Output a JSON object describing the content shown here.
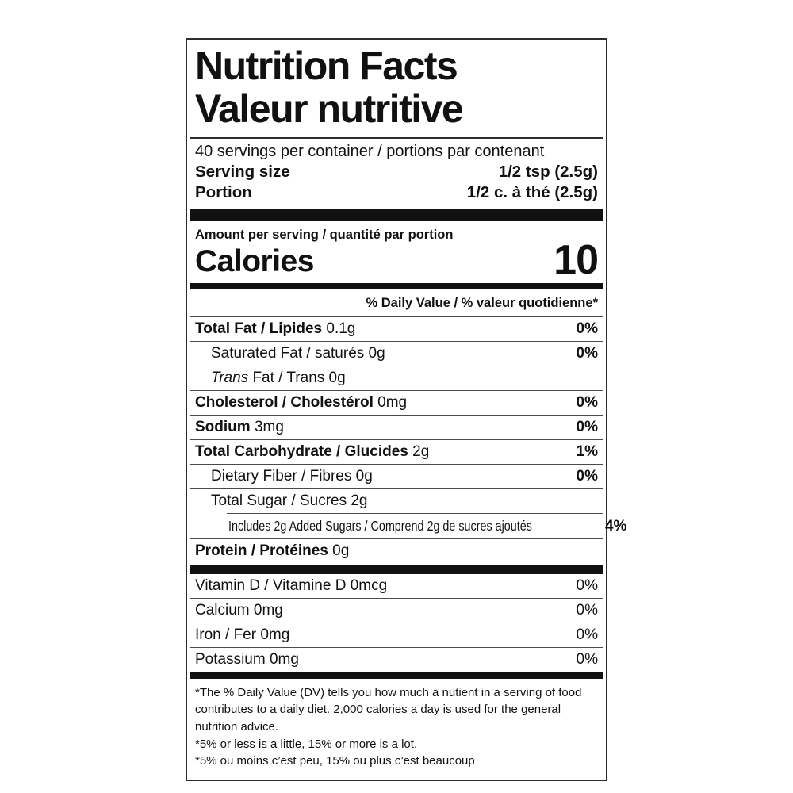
{
  "label": {
    "title_en": "Nutrition Facts",
    "title_fr": "Valeur nutritive",
    "servings_per_container": "40 servings per container / portions par contenant",
    "serving_size_label": "Serving size",
    "serving_size_value": "1/2 tsp (2.5g)",
    "portion_label": "Portion",
    "portion_value": "1/2 c. à thé (2.5g)",
    "amount_per_serving": "Amount per serving / quantité par portion",
    "calories_label": "Calories",
    "calories_value": "10",
    "daily_value_header": "% Daily Value / % valeur quotidienne*",
    "colors": {
      "text": "#111111",
      "bars": "#111111",
      "thin_rule": "#4a4a4a",
      "border": "#2e2e2e",
      "background": "#ffffff"
    },
    "nutrients": [
      {
        "parts": [
          {
            "t": "Total Fat / Lipides",
            "s": "b"
          },
          {
            "t": " 0.1g",
            "s": "r"
          }
        ],
        "dv": "0%",
        "dv_bold": true,
        "indent": 0,
        "rule": "full"
      },
      {
        "parts": [
          {
            "t": "Saturated Fat / saturés 0g",
            "s": "r"
          }
        ],
        "dv": "0%",
        "dv_bold": true,
        "indent": 1,
        "rule": "full"
      },
      {
        "parts": [
          {
            "t": "Trans",
            "s": "i"
          },
          {
            "t": " Fat / Trans 0g",
            "s": "r"
          }
        ],
        "dv": "",
        "dv_bold": false,
        "indent": 1,
        "rule": "full"
      },
      {
        "parts": [
          {
            "t": "Cholesterol / Cholestérol",
            "s": "b"
          },
          {
            "t": " 0mg",
            "s": "r"
          }
        ],
        "dv": "0%",
        "dv_bold": true,
        "indent": 0,
        "rule": "full"
      },
      {
        "parts": [
          {
            "t": "Sodium",
            "s": "b"
          },
          {
            "t": " 3mg",
            "s": "r"
          }
        ],
        "dv": "0%",
        "dv_bold": true,
        "indent": 0,
        "rule": "full"
      },
      {
        "parts": [
          {
            "t": "Total Carbohydrate / Glucides",
            "s": "b"
          },
          {
            "t": " 2g",
            "s": "r"
          }
        ],
        "dv": "1%",
        "dv_bold": true,
        "indent": 0,
        "rule": "full"
      },
      {
        "parts": [
          {
            "t": "Dietary Fiber / Fibres 0g",
            "s": "r"
          }
        ],
        "dv": "0%",
        "dv_bold": true,
        "indent": 1,
        "rule": "full"
      },
      {
        "parts": [
          {
            "t": "Total Sugar / Sucres 2g",
            "s": "r"
          }
        ],
        "dv": "",
        "dv_bold": false,
        "indent": 1,
        "rule": "full"
      },
      {
        "parts": [
          {
            "t": "Includes 2g Added Sugars / Comprend 2g de sucres ajoutés",
            "s": "r"
          }
        ],
        "dv": "4%",
        "dv_bold": true,
        "indent": 2,
        "rule": "indent",
        "condensed": true
      },
      {
        "parts": [
          {
            "t": "Protein / Protéines",
            "s": "b"
          },
          {
            "t": " 0g",
            "s": "r"
          }
        ],
        "dv": "",
        "dv_bold": false,
        "indent": 0,
        "rule": "full"
      }
    ],
    "vitamins": [
      {
        "parts": [
          {
            "t": "Vitamin D / Vitamine D 0mcg",
            "s": "r"
          }
        ],
        "dv": "0%",
        "dv_bold": false,
        "indent": 0,
        "rule": "none"
      },
      {
        "parts": [
          {
            "t": "Calcium 0mg",
            "s": "r"
          }
        ],
        "dv": "0%",
        "dv_bold": false,
        "indent": 0,
        "rule": "full"
      },
      {
        "parts": [
          {
            "t": "Iron / Fer 0mg",
            "s": "r"
          }
        ],
        "dv": "0%",
        "dv_bold": false,
        "indent": 0,
        "rule": "full"
      },
      {
        "parts": [
          {
            "t": "Potassium 0mg",
            "s": "r"
          }
        ],
        "dv": "0%",
        "dv_bold": false,
        "indent": 0,
        "rule": "full"
      }
    ],
    "footnotes": [
      "*The % Daily Value (DV) tells you how much a nutient in a serving of food contributes to a daily diet. 2,000 calories a day is used for the general nutrition advice.",
      "*5% or less is a little, 15% or more is a lot.",
      "*5% ou moins c’est peu, 15% ou plus c’est beaucoup"
    ]
  }
}
